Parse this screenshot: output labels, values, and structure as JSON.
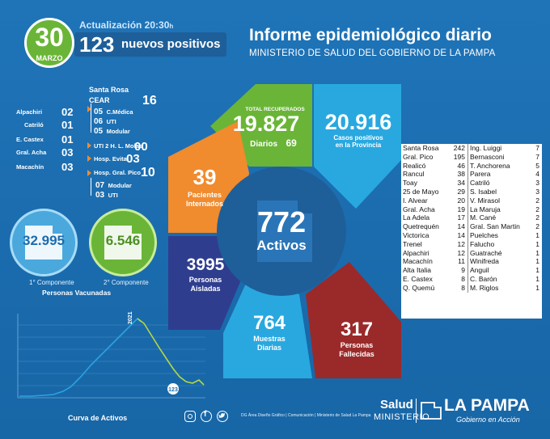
{
  "header": {
    "day": "30",
    "month": "MARZO",
    "update": "Actualización 20:30",
    "update_suffix": "h",
    "new_positives_count": "123",
    "new_positives_label": "nuevos positivos",
    "title": "Informe epidemiológico diario",
    "subtitle": "MINISTERIO DE SALUD DEL GOBIERNO DE LA PAMPA"
  },
  "hospitals_left": [
    {
      "name": "Alpachiri",
      "value": "02"
    },
    {
      "name": "Catriló",
      "value": "01"
    },
    {
      "name": "E. Castex",
      "value": "01"
    },
    {
      "name": "Gral. Acha",
      "value": "03"
    },
    {
      "name": "Macachín",
      "value": "03"
    }
  ],
  "santa_rosa": {
    "title": "Santa Rosa",
    "cear_label": "CEAR",
    "cear_total": "16",
    "cear_items": [
      {
        "value": "05",
        "label": "C.Médica"
      },
      {
        "value": "06",
        "label": "UTI"
      },
      {
        "value": "05",
        "label": "Modular"
      }
    ],
    "molas_label": "UTI 2 H. L. Molas",
    "molas_value": "00",
    "evita_label": "Hosp. Evita",
    "evita_value": "03",
    "pico_label": "Hosp. Gral. Pico",
    "pico_total": "10",
    "pico_items": [
      {
        "value": "07",
        "label": "Modular"
      },
      {
        "value": "03",
        "label": "UTI"
      }
    ]
  },
  "vaccines": {
    "first_value": "32.995",
    "first_label": "1° Componente",
    "second_value": "6.546",
    "second_label": "2° Componente",
    "title": "Personas Vacunadas"
  },
  "ring": {
    "recovered_label": "TOTAL RECUPERADOS",
    "recovered_value": "19.827",
    "daily_label": "Diarios",
    "daily_value": "69",
    "cases_value": "20.916",
    "cases_label_1": "Casos positivos",
    "cases_label_2": "en la Provincia",
    "hospitalized_value": "39",
    "hospitalized_label_1": "Pacientes",
    "hospitalized_label_2": "Internados",
    "isolated_value": "3995",
    "isolated_label_1": "Personas",
    "isolated_label_2": "Aisladas",
    "samples_value": "764",
    "samples_label_1": "Muestras",
    "samples_label_2": "Diarias",
    "deaths_value": "317",
    "deaths_label_1": "Personas",
    "deaths_label_2": "Fallecidas",
    "active_value": "772",
    "active_label": "Activos"
  },
  "departments_left": [
    {
      "name": "Santa Rosa",
      "value": "242"
    },
    {
      "name": "Gral. Pico",
      "value": "195"
    },
    {
      "name": "Realicó",
      "value": "46"
    },
    {
      "name": "Rancul",
      "value": "38"
    },
    {
      "name": "Toay",
      "value": "34"
    },
    {
      "name": "25 de Mayo",
      "value": "29"
    },
    {
      "name": "I. Alvear",
      "value": "20"
    },
    {
      "name": "Gral. Acha",
      "value": "19"
    },
    {
      "name": "La Adela",
      "value": "17"
    },
    {
      "name": "Quetrequén",
      "value": "14"
    },
    {
      "name": "Victorica",
      "value": "14"
    },
    {
      "name": "Trenel",
      "value": "12"
    },
    {
      "name": "Alpachiri",
      "value": "12"
    },
    {
      "name": "Macachín",
      "value": "11"
    },
    {
      "name": "Alta Italia",
      "value": "9"
    },
    {
      "name": "E. Castex",
      "value": "8"
    },
    {
      "name": "Q. Quemú",
      "value": "8"
    }
  ],
  "departments_right": [
    {
      "name": "Ing. Luiggi",
      "value": "7"
    },
    {
      "name": "Bernasconi",
      "value": "7"
    },
    {
      "name": "T. Anchorena",
      "value": "5"
    },
    {
      "name": "Parera",
      "value": "4"
    },
    {
      "name": "Catriló",
      "value": "3"
    },
    {
      "name": "S. Isabel",
      "value": "3"
    },
    {
      "name": "V. Mirasol",
      "value": "2"
    },
    {
      "name": "La Maruja",
      "value": "2"
    },
    {
      "name": "M. Cané",
      "value": "2"
    },
    {
      "name": "Gral. San Martin",
      "value": "2"
    },
    {
      "name": "Puelches",
      "value": "1"
    },
    {
      "name": "Falucho",
      "value": "1"
    },
    {
      "name": "Guatraché",
      "value": "1"
    },
    {
      "name": "Winifreda",
      "value": "1"
    },
    {
      "name": "Anguil",
      "value": "1"
    },
    {
      "name": "C. Barón",
      "value": "1"
    },
    {
      "name": "M. Riglos",
      "value": "1"
    }
  ],
  "curve": {
    "title": "Curva de Activos",
    "year_label": "2021",
    "current_label": "123"
  },
  "footer": {
    "credits": "DG Área Diseño Gráfico  |  Comunicación  |  Ministerio de Salud La Pampa",
    "salud": "Salud",
    "ministerio": "MINISTERIO",
    "lapampa": "LA PAMPA",
    "gobierno": "Gobierno en Acción"
  },
  "colors": {
    "background": "#1f74b8",
    "green": "#6ab537",
    "light_blue": "#29a8e0",
    "orange": "#f08b2e",
    "navy": "#2f3d8f",
    "dark_red": "#9a2a2a",
    "center": "#1e5f99"
  },
  "icons": [
    "instagram-icon",
    "facebook-icon",
    "twitter-icon"
  ]
}
